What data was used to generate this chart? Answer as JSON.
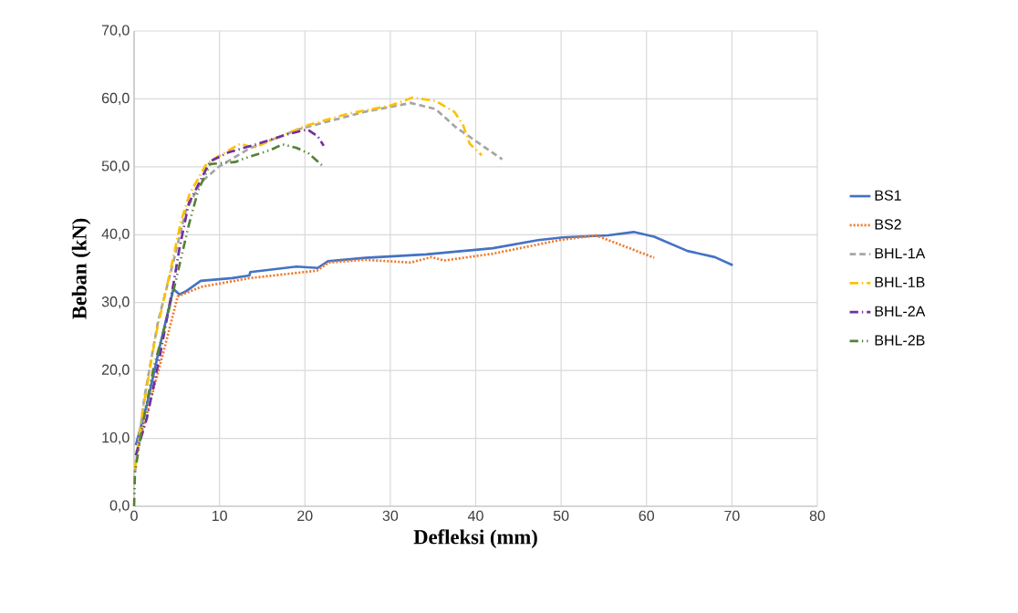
{
  "chart_data": {
    "type": "line",
    "xlabel": "Defleksi (mm)",
    "ylabel": "Beban (kN)",
    "xlim": [
      0,
      80
    ],
    "xticks": [
      0,
      10,
      20,
      30,
      40,
      50,
      60,
      70,
      80
    ],
    "ylim": [
      0,
      70
    ],
    "yticks": [
      {
        "value": 0,
        "label": "0,0"
      },
      {
        "value": 10,
        "label": "10,0"
      },
      {
        "value": 20,
        "label": "20,0"
      },
      {
        "value": 30,
        "label": "30,0"
      },
      {
        "value": 40,
        "label": "40,0"
      },
      {
        "value": 50,
        "label": "50,0"
      },
      {
        "value": 60,
        "label": "60,0"
      },
      {
        "value": 70,
        "label": "70,0"
      }
    ],
    "grid": true,
    "legend": "right",
    "marker": "none",
    "series": [
      {
        "name": "BS1",
        "color": "#4472c4",
        "line_style": "solid",
        "x": [
          0.2,
          1.5,
          3.0,
          4.6,
          5.3,
          6.0,
          7.8,
          11.5,
          13.5,
          13.6,
          19.0,
          21.5,
          22.7,
          27.1,
          34.2,
          42.0,
          47.3,
          50.2,
          55.5,
          58.5,
          60.9,
          64.8,
          68.0,
          70.1
        ],
        "values": [
          9.0,
          15.0,
          23.5,
          32.0,
          31.2,
          31.6,
          33.2,
          33.6,
          34.0,
          34.5,
          35.3,
          35.1,
          36.1,
          36.6,
          37.1,
          38.0,
          39.2,
          39.6,
          39.9,
          40.4,
          39.7,
          37.6,
          36.7,
          35.5
        ]
      },
      {
        "name": "BS2",
        "color": "#ed7d31",
        "line_style": "dotted",
        "x": [
          0.3,
          1.8,
          3.5,
          5.1,
          7.8,
          13.5,
          21.4,
          22.8,
          27.0,
          32.4,
          34.8,
          36.3,
          42.0,
          49.8,
          54.1,
          60.9
        ],
        "values": [
          8.0,
          15.0,
          23.0,
          30.9,
          32.3,
          33.6,
          34.7,
          35.9,
          36.3,
          35.9,
          36.7,
          36.2,
          37.2,
          39.2,
          39.9,
          36.6
        ]
      },
      {
        "name": "BHL-1A",
        "color": "#a5a5a5",
        "line_style": "dashed",
        "x": [
          0.1,
          1.2,
          2.8,
          4.6,
          6.0,
          7.8,
          9.9,
          13.5,
          19.2,
          27.0,
          32.4,
          35.3,
          37.7,
          43.1
        ],
        "values": [
          5.0,
          16.0,
          27.2,
          36.0,
          43.3,
          47.7,
          50.0,
          52.7,
          55.5,
          58.1,
          59.4,
          58.5,
          55.8,
          51.1
        ]
      },
      {
        "name": "BHL-1B",
        "color": "#ffc000",
        "line_style": "dashdot",
        "x": [
          0.1,
          1.0,
          2.5,
          4.3,
          5.5,
          6.5,
          8.5,
          12.4,
          14.0,
          20.0,
          25.0,
          30.0,
          32.6,
          35.3,
          37.5,
          38.5,
          39.3,
          40.7
        ],
        "values": [
          5.5,
          14.0,
          25.0,
          35.0,
          42.0,
          46.0,
          50.5,
          53.4,
          52.8,
          56.0,
          57.8,
          59.0,
          60.2,
          59.7,
          58.1,
          56.2,
          53.4,
          51.7
        ]
      },
      {
        "name": "BHL-2A",
        "color": "#7030a0",
        "line_style": "dashdot",
        "x": [
          0.2,
          1.5,
          3.0,
          4.6,
          5.3,
          6.4,
          8.9,
          11.0,
          14.5,
          18.0,
          20.3,
          21.5,
          22.2
        ],
        "values": [
          7.5,
          13.0,
          22.0,
          32.7,
          37.9,
          44.6,
          50.8,
          52.1,
          53.4,
          54.8,
          55.5,
          54.5,
          53.1
        ]
      },
      {
        "name": "BHL-2B",
        "color": "#548235",
        "line_style": "dashdotdot",
        "x": [
          0.0,
          0.1,
          1.0,
          2.3,
          3.5,
          4.9,
          6.4,
          7.5,
          8.9,
          11.8,
          13.1,
          16.0,
          17.4,
          19.0,
          20.4,
          22.2
        ],
        "values": [
          0.0,
          5.0,
          12.0,
          20.5,
          26.0,
          33.3,
          41.4,
          46.5,
          50.4,
          50.7,
          51.3,
          52.5,
          53.3,
          52.8,
          52.0,
          50.0
        ]
      }
    ]
  }
}
